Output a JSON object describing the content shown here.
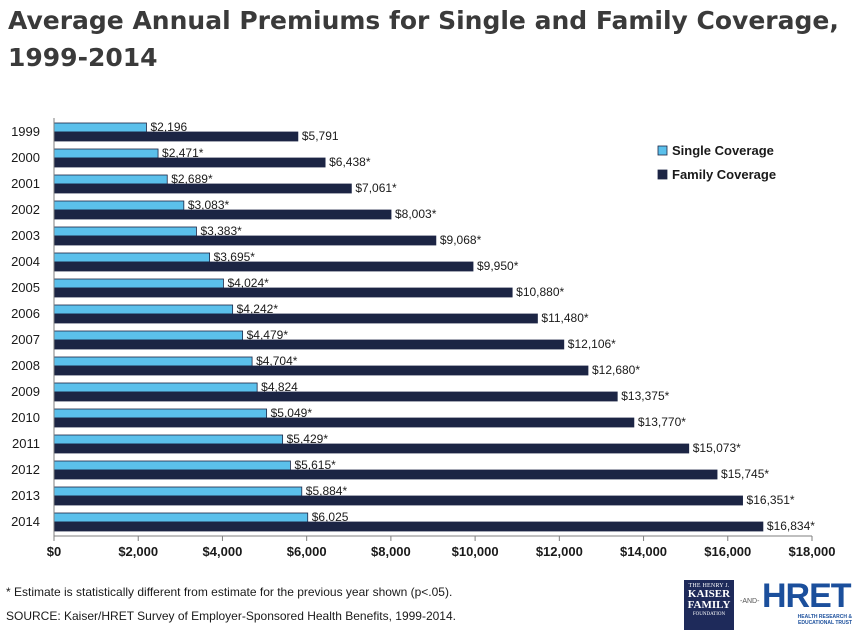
{
  "title": "Average Annual Premiums for Single and Family Coverage, 1999-2014",
  "footnote": "* Estimate is statistically different from estimate for the previous year shown (p<.05).",
  "source": "SOURCE:  Kaiser/HRET Survey of Employer-Sponsored Health Benefits, 1999-2014.",
  "logos": {
    "kff_line1": "THE HENRY J.",
    "kff_line2": "KAISER",
    "kff_line3": "FAMILY",
    "kff_line4": "FOUNDATION",
    "and_text": "-AND-",
    "hret_word": "HRET",
    "hret_sub1": "HEALTH RESEARCH &",
    "hret_sub2": "EDUCATIONAL TRUST"
  },
  "colors": {
    "single": "#5bc0eb",
    "family": "#1c2544"
  },
  "chart_data": {
    "type": "bar",
    "orientation": "horizontal",
    "categories": [
      "1999",
      "2000",
      "2001",
      "2002",
      "2003",
      "2004",
      "2005",
      "2006",
      "2007",
      "2008",
      "2009",
      "2010",
      "2011",
      "2012",
      "2013",
      "2014"
    ],
    "series": [
      {
        "name": "Single Coverage",
        "values": [
          2196,
          2471,
          2689,
          3083,
          3383,
          3695,
          4024,
          4242,
          4479,
          4704,
          4824,
          5049,
          5429,
          5615,
          5884,
          6025
        ],
        "labels": [
          "$2,196",
          "$2,471*",
          "$2,689*",
          "$3,083*",
          "$3,383*",
          "$3,695*",
          "$4,024*",
          "$4,242*",
          "$4,479*",
          "$4,704*",
          "$4,824",
          "$5,049*",
          "$5,429*",
          "$5,615*",
          "$5,884*",
          "$6,025"
        ]
      },
      {
        "name": "Family Coverage",
        "values": [
          5791,
          6438,
          7061,
          8003,
          9068,
          9950,
          10880,
          11480,
          12106,
          12680,
          13375,
          13770,
          15073,
          15745,
          16351,
          16834
        ],
        "labels": [
          "$5,791",
          "$6,438*",
          "$7,061*",
          "$8,003*",
          "$9,068*",
          "$9,950*",
          "$10,880*",
          "$11,480*",
          "$12,106*",
          "$12,680*",
          "$13,375*",
          "$13,770*",
          "$15,073*",
          "$15,745*",
          "$16,351*",
          "$16,834*"
        ]
      }
    ],
    "xlim": [
      0,
      18000
    ],
    "x_ticks": [
      0,
      2000,
      4000,
      6000,
      8000,
      10000,
      12000,
      14000,
      16000,
      18000
    ],
    "x_tick_labels": [
      "$0",
      "$2,000",
      "$4,000",
      "$6,000",
      "$8,000",
      "$10,000",
      "$12,000",
      "$14,000",
      "$16,000",
      "$18,000"
    ],
    "grid": false,
    "legend_position": "top-right"
  }
}
